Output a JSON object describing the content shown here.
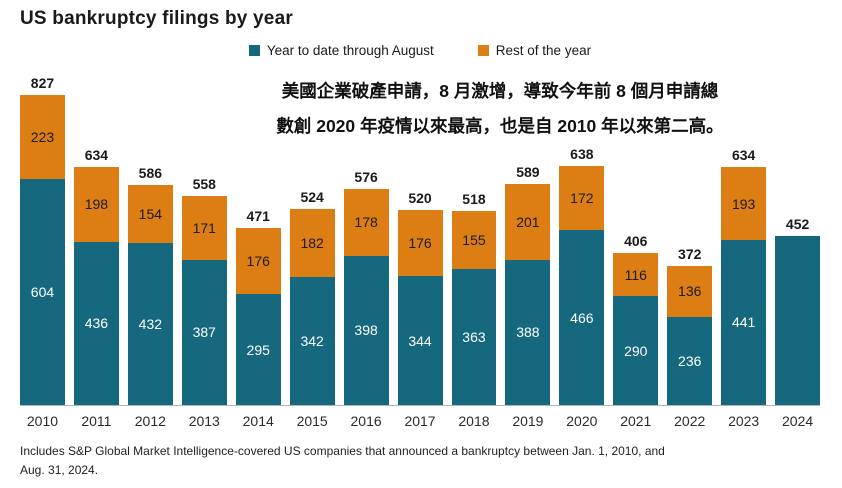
{
  "header": {
    "title": "US bankruptcy filings by year"
  },
  "legend": {
    "ytd_label": "Year to date through August",
    "rest_label": "Rest of the year"
  },
  "annotation": {
    "line1": "美國企業破產申請，8 月激增，導致今年前 8 個月申請總",
    "line2": "數創 2020 年疫情以來最高，也是自 2010 年以來第二高。"
  },
  "footnote": {
    "line1": "Includes S&P Global Market Intelligence-covered US companies that announced a bankruptcy between Jan. 1, 2010, and",
    "line2": "Aug. 31, 2024."
  },
  "colors": {
    "ytd": "#15687E",
    "rest": "#DD7E14",
    "axis_line": "#B3B3B3",
    "text": "#1A1A1A"
  },
  "chart_data": {
    "type": "bar",
    "stacked": true,
    "title": "US bankruptcy filings by year",
    "xlabel": "",
    "ylabel": "",
    "ylim": [
      0,
      827
    ],
    "grid": false,
    "legend_position": "top",
    "categories": [
      "2010",
      "2011",
      "2012",
      "2013",
      "2014",
      "2015",
      "2016",
      "2017",
      "2018",
      "2019",
      "2020",
      "2021",
      "2022",
      "2023",
      "2024"
    ],
    "series": [
      {
        "name": "Year to date through August",
        "color": "#15687E",
        "values": [
          604,
          436,
          432,
          387,
          295,
          342,
          398,
          344,
          363,
          388,
          466,
          290,
          236,
          441,
          452
        ],
        "inner_labels": [
          604,
          436,
          432,
          387,
          295,
          342,
          398,
          344,
          363,
          388,
          466,
          290,
          236,
          441,
          null
        ]
      },
      {
        "name": "Rest of the year",
        "color": "#DD7E14",
        "values": [
          223,
          198,
          154,
          171,
          176,
          182,
          178,
          176,
          155,
          201,
          172,
          116,
          136,
          193,
          null
        ],
        "inner_labels": [
          223,
          198,
          154,
          171,
          176,
          182,
          178,
          176,
          155,
          201,
          172,
          116,
          136,
          193,
          null
        ]
      }
    ],
    "totals": [
      827,
      634,
      586,
      558,
      471,
      524,
      576,
      520,
      518,
      589,
      638,
      406,
      372,
      634,
      452
    ]
  }
}
